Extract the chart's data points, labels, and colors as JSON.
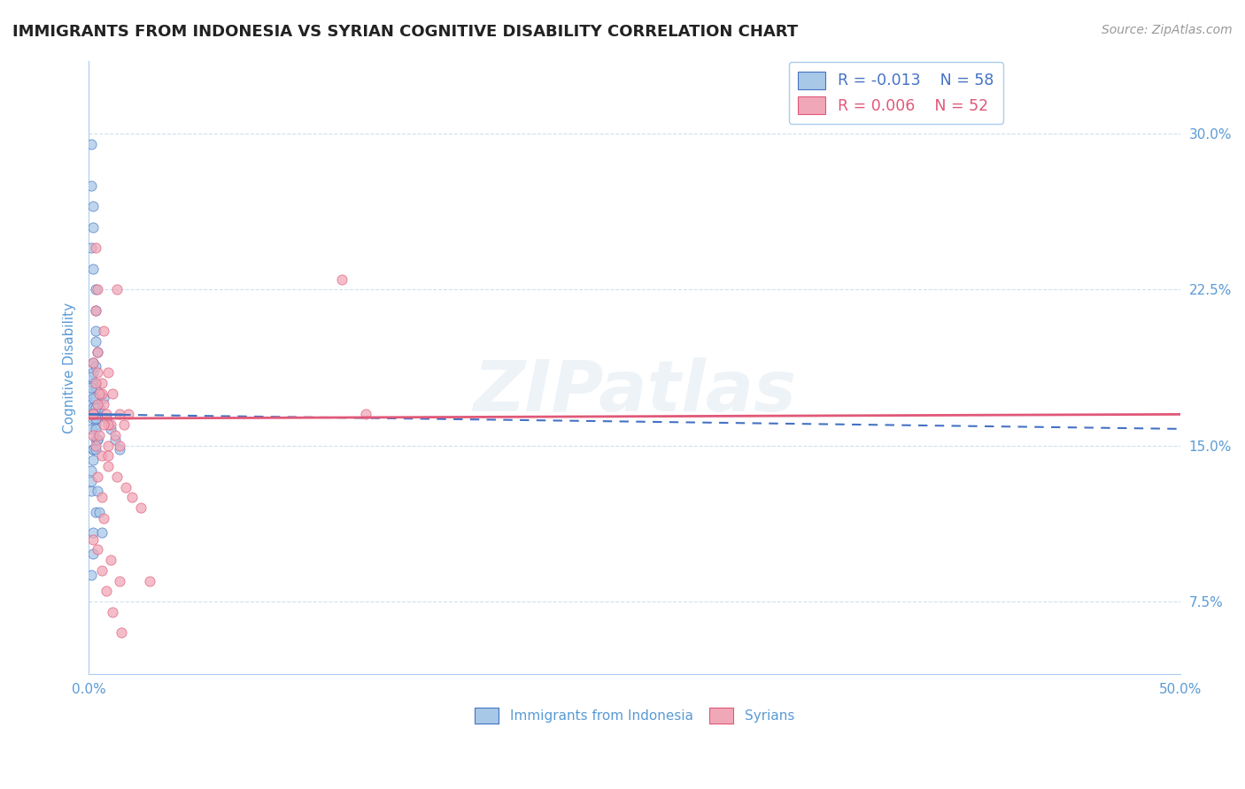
{
  "title": "IMMIGRANTS FROM INDONESIA VS SYRIAN COGNITIVE DISABILITY CORRELATION CHART",
  "source": "Source: ZipAtlas.com",
  "ylabel": "Cognitive Disability",
  "xlim": [
    0.0,
    0.5
  ],
  "ylim": [
    0.04,
    0.335
  ],
  "xticks": [
    0.0,
    0.05,
    0.1,
    0.15,
    0.2,
    0.25,
    0.3,
    0.35,
    0.4,
    0.45,
    0.5
  ],
  "xticklabels": [
    "0.0%",
    "",
    "",
    "",
    "",
    "",
    "",
    "",
    "",
    "",
    "50.0%"
  ],
  "yticks": [
    0.075,
    0.15,
    0.225,
    0.3
  ],
  "yticklabels": [
    "7.5%",
    "15.0%",
    "22.5%",
    "30.0%"
  ],
  "legend_r1": "R = -0.013",
  "legend_n1": "N = 58",
  "legend_r2": "R = 0.006",
  "legend_n2": "N = 52",
  "color_blue": "#A8C8E8",
  "color_pink": "#F0A8B8",
  "color_blue_line": "#4472C4",
  "color_pink_line": "#E05878",
  "color_text": "#5B9BD5",
  "watermark": "ZIPatlas",
  "background_color": "#FFFFFF",
  "indonesia_x": [
    0.001,
    0.002,
    0.001,
    0.002,
    0.003,
    0.004,
    0.001,
    0.002,
    0.003,
    0.003,
    0.002,
    0.001,
    0.002,
    0.001,
    0.002,
    0.003,
    0.003,
    0.004,
    0.002,
    0.003,
    0.001,
    0.002,
    0.003,
    0.003,
    0.001,
    0.002,
    0.003,
    0.004,
    0.005,
    0.007,
    0.008,
    0.01,
    0.012,
    0.014,
    0.003,
    0.002,
    0.001,
    0.001,
    0.001,
    0.002,
    0.003,
    0.004,
    0.003,
    0.002,
    0.002,
    0.001,
    0.004,
    0.005,
    0.006,
    0.001,
    0.002,
    0.002,
    0.003,
    0.001,
    0.002,
    0.003,
    0.003,
    0.004
  ],
  "indonesia_y": [
    0.275,
    0.255,
    0.295,
    0.235,
    0.215,
    0.195,
    0.245,
    0.265,
    0.225,
    0.205,
    0.185,
    0.175,
    0.18,
    0.17,
    0.19,
    0.2,
    0.178,
    0.168,
    0.165,
    0.16,
    0.17,
    0.18,
    0.173,
    0.163,
    0.158,
    0.148,
    0.153,
    0.163,
    0.168,
    0.173,
    0.163,
    0.158,
    0.153,
    0.148,
    0.188,
    0.148,
    0.138,
    0.128,
    0.133,
    0.143,
    0.148,
    0.153,
    0.118,
    0.108,
    0.098,
    0.088,
    0.128,
    0.118,
    0.108,
    0.178,
    0.168,
    0.163,
    0.158,
    0.183,
    0.173,
    0.168,
    0.163,
    0.153
  ],
  "syrian_x": [
    0.003,
    0.004,
    0.007,
    0.009,
    0.011,
    0.013,
    0.004,
    0.006,
    0.014,
    0.003,
    0.004,
    0.006,
    0.008,
    0.01,
    0.002,
    0.005,
    0.007,
    0.009,
    0.012,
    0.014,
    0.016,
    0.018,
    0.002,
    0.003,
    0.006,
    0.009,
    0.013,
    0.017,
    0.02,
    0.024,
    0.116,
    0.127,
    0.002,
    0.004,
    0.006,
    0.008,
    0.011,
    0.015,
    0.002,
    0.003,
    0.004,
    0.007,
    0.009,
    0.004,
    0.006,
    0.007,
    0.01,
    0.014,
    0.002,
    0.005,
    0.009,
    0.028
  ],
  "syrian_y": [
    0.245,
    0.225,
    0.205,
    0.185,
    0.175,
    0.225,
    0.195,
    0.18,
    0.165,
    0.215,
    0.185,
    0.175,
    0.165,
    0.16,
    0.165,
    0.175,
    0.17,
    0.16,
    0.155,
    0.15,
    0.16,
    0.165,
    0.155,
    0.15,
    0.145,
    0.14,
    0.135,
    0.13,
    0.125,
    0.12,
    0.23,
    0.165,
    0.105,
    0.1,
    0.09,
    0.08,
    0.07,
    0.06,
    0.19,
    0.18,
    0.17,
    0.16,
    0.15,
    0.135,
    0.125,
    0.115,
    0.095,
    0.085,
    0.165,
    0.155,
    0.145,
    0.085
  ],
  "trend_indo_x0": 0.0,
  "trend_indo_y0": 0.165,
  "trend_indo_x1": 0.5,
  "trend_indo_y1": 0.158,
  "trend_indo_solid_end": 0.015,
  "trend_syr_x0": 0.0,
  "trend_syr_y0": 0.163,
  "trend_syr_x1": 0.5,
  "trend_syr_y1": 0.165
}
